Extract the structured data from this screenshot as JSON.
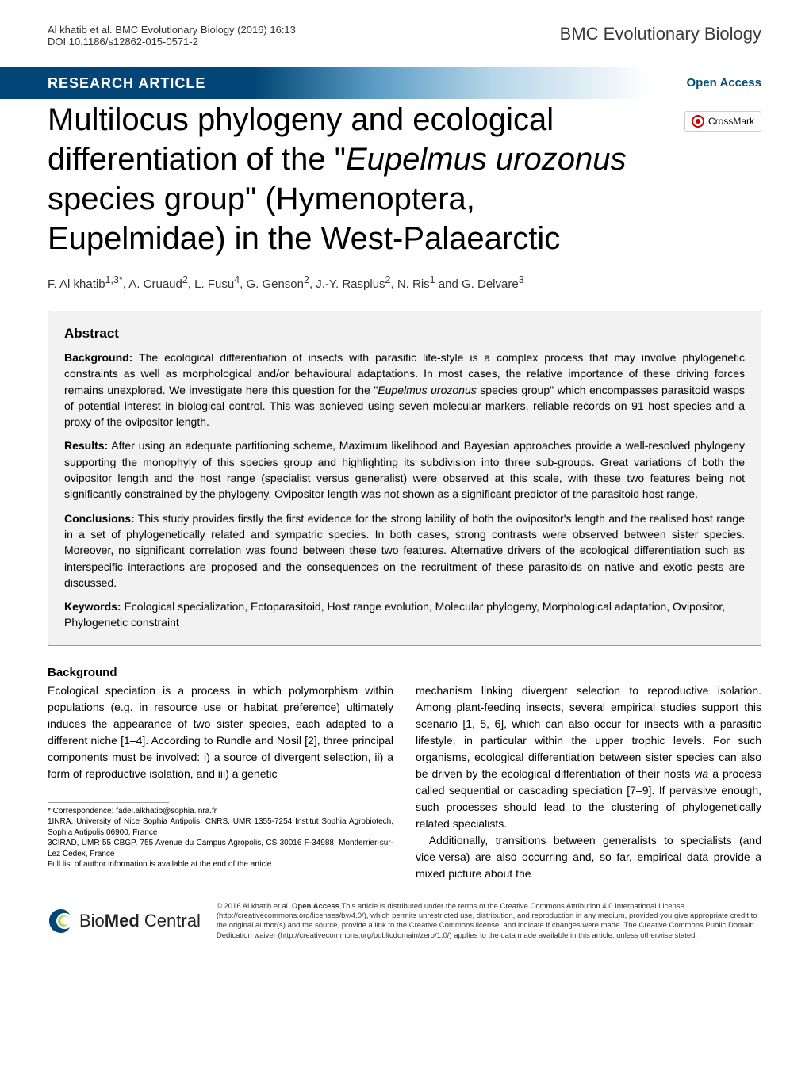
{
  "header": {
    "citation_line1": "Al khatib et al. BMC Evolutionary Biology (2016) 16:13",
    "citation_line2": "DOI 10.1186/s12862-015-0571-2",
    "journal_name": "BMC Evolutionary Biology"
  },
  "banner": {
    "article_type": "RESEARCH ARTICLE",
    "open_access": "Open Access"
  },
  "crossmark_label": "CrossMark",
  "title_html": "Multilocus phylogeny and ecological differentiation of the \"<em>Eupelmus urozonus</em> species group\" (Hymenoptera, Eupelmidae) in the West-Palaearctic",
  "authors_html": "F. Al khatib<sup>1,3*</sup>, A. Cruaud<sup>2</sup>, L. Fusu<sup>4</sup>, G. Genson<sup>2</sup>, J.-Y. Rasplus<sup>2</sup>, N. Ris<sup>1</sup> and G. Delvare<sup>3</sup>",
  "abstract": {
    "heading": "Abstract",
    "background_label": "Background:",
    "background_text": " The ecological differentiation of insects with parasitic life-style is a complex process that may involve phylogenetic constraints as well as morphological and/or behavioural adaptations. In most cases, the relative importance of these driving forces remains unexplored. We investigate here this question for the \"<em>Eupelmus urozonus</em> species group\" which encompasses parasitoid wasps of potential interest in biological control. This was achieved using seven molecular markers, reliable records on 91 host species and a proxy of the ovipositor length.",
    "results_label": "Results:",
    "results_text": " After using an adequate partitioning scheme, Maximum likelihood and Bayesian approaches provide a well-resolved phylogeny supporting the monophyly of this species group and highlighting its subdivision into three sub-groups. Great variations of both the ovipositor length and the host range (specialist versus generalist) were observed at this scale, with these two features being not significantly constrained by the phylogeny. Ovipositor length was not shown as a significant predictor of the parasitoid host range.",
    "conclusions_label": "Conclusions:",
    "conclusions_text": " This study provides firstly the first evidence for the strong lability of both the ovipositor's length and the realised host range in a set of phylogenetically related and sympatric species. In both cases, strong contrasts were observed between sister species. Moreover, no significant correlation was found between these two features. Alternative drivers of the ecological differentiation such as interspecific interactions are proposed and the consequences on the recruitment of these parasitoids on native and exotic pests are discussed.",
    "keywords_label": "Keywords:",
    "keywords_text": " Ecological specialization, Ectoparasitoid, Host range evolution, Molecular phylogeny, Morphological adaptation, Ovipositor, Phylogenetic constraint"
  },
  "body": {
    "heading": "Background",
    "para1": "Ecological speciation is a process in which polymorphism within populations (e.g. in resource use or habitat preference) ultimately induces the appearance of two sister species, each adapted to a different niche [1–4]. According to Rundle and Nosil [2], three principal components must be involved: i) a source of divergent selection, ii) a form of reproductive isolation, and iii) a genetic",
    "para2_html": "mechanism linking divergent selection to reproductive isolation. Among plant-feeding insects, several empirical studies support this scenario [1, 5, 6], which can also occur for insects with a parasitic lifestyle, in particular within the upper trophic levels. For such organisms, ecological differentiation between sister species can also be driven by the ecological differentiation of their hosts <em>via</em> a process called sequential or cascading speciation [7–9]. If pervasive enough, such processes should lead to the clustering of phylogenetically related specialists.",
    "para3": "Additionally, transitions between generalists to specialists (and vice-versa) are also occurring and, so far, empirical data provide a mixed picture about the"
  },
  "footnotes": {
    "correspondence": "* Correspondence: fadel.alkhatib@sophia.inra.fr",
    "affil1": "1INRA, University of Nice Sophia Antipolis, CNRS, UMR 1355-7254 Institut Sophia Agrobiotech, Sophia Antipolis 06900, France",
    "affil3": "3CIRAD, UMR 55 CBGP, 755 Avenue du Campus Agropolis, CS 30016 F-34988, Montferrier-sur-Lez Cedex, France",
    "full_list": "Full list of author information is available at the end of the article"
  },
  "footer": {
    "bmc_label": "BioMed Central",
    "license_html": "© 2016 Al khatib et al. <strong>Open Access</strong> This article is distributed under the terms of the Creative Commons Attribution 4.0 International License (http://creativecommons.org/licenses/by/4.0/), which permits unrestricted use, distribution, and reproduction in any medium, provided you give appropriate credit to the original author(s) and the source, provide a link to the Creative Commons license, and indicate if changes were made. The Creative Commons Public Domain Dedication waiver (http://creativecommons.org/publicdomain/zero/1.0/) applies to the data made available in this article, unless otherwise stated."
  },
  "colors": {
    "banner_bg": "#014676",
    "banner_text": "#ffffff",
    "open_access_color": "#064d7b",
    "abstract_bg": "#f2f2f2",
    "abstract_border": "#999999",
    "bmc_swirl_outer": "#014676",
    "bmc_swirl_inner": "#b7d860"
  }
}
